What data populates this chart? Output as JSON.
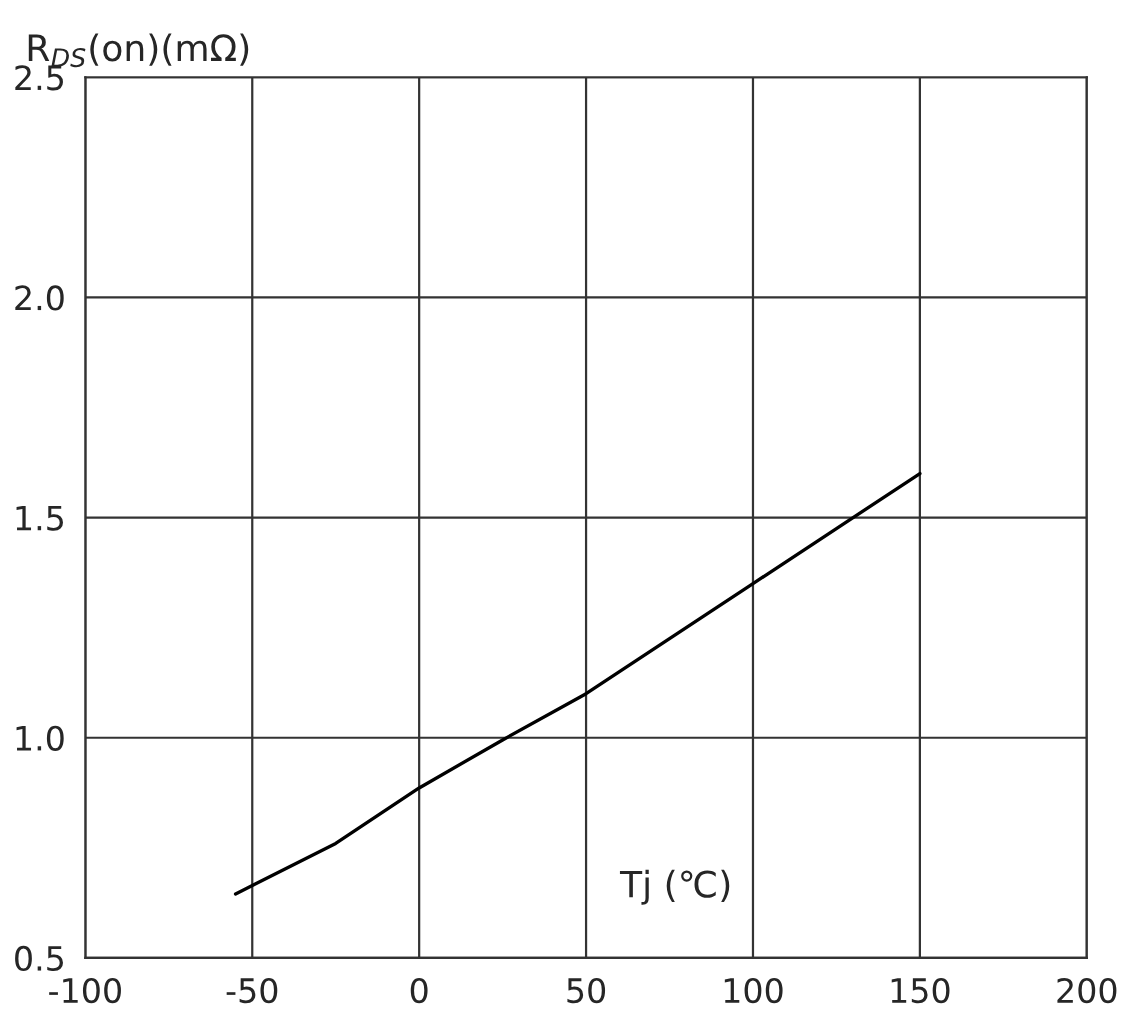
{
  "chart_data": {
    "type": "line",
    "xlabel": "Tj (℃)",
    "ylabel": "R$_{DS}$(on)(mΩ)",
    "x": [
      -55,
      -25,
      0,
      25,
      50,
      75,
      100,
      125,
      150
    ],
    "series": [
      {
        "color": "#000000",
        "values": [
          0.645,
          0.76,
          0.886,
          0.995,
          1.1,
          1.225,
          1.35,
          1.475,
          1.6
        ]
      }
    ],
    "xlim": [
      -100,
      200
    ],
    "xticks": [
      -100,
      -50,
      0,
      50,
      100,
      150,
      200
    ],
    "ylim": [
      0.5,
      2.5
    ],
    "yticks": [
      0.5,
      {
        "value": 1,
        "label": "1.0"
      },
      1.5,
      {
        "value": 2,
        "label": "2.0"
      },
      2.5
    ],
    "grid": true,
    "legend": false,
    "marker": "none",
    "line_style": "solid"
  }
}
